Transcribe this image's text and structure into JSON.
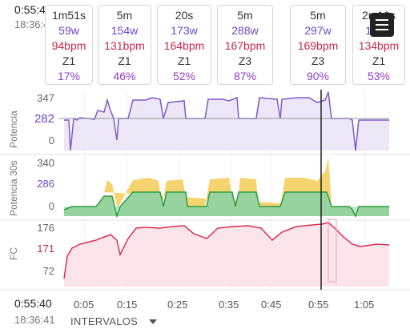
{
  "header": {
    "time": "0:55:40",
    "clock": "18:36:41"
  },
  "cards": [
    {
      "duration": "1m51s",
      "power": "59w",
      "hr": "94bpm",
      "zone": "Z1",
      "pct": "17%"
    },
    {
      "duration": "5m",
      "power": "154w",
      "hr": "131bpm",
      "zone": "Z1",
      "pct": "46%"
    },
    {
      "duration": "20s",
      "power": "173w",
      "hr": "164bpm",
      "zone": "Z1",
      "pct": "52%"
    },
    {
      "duration": "5m",
      "power": "288w",
      "hr": "167bpm",
      "zone": "Z3",
      "pct": "87%"
    },
    {
      "duration": "5m",
      "power": "297w",
      "hr": "169bpm",
      "zone": "Z3",
      "pct": "90%"
    },
    {
      "duration": "2m10s",
      "power": "176w",
      "hr": "134bpm",
      "zone": "Z1",
      "pct": "53%"
    }
  ],
  "charts": {
    "power": {
      "label": "Potencia",
      "ticks": [
        "347",
        "282",
        "0"
      ]
    },
    "power30": {
      "label": "Potencia 30s",
      "ticks": [
        "340",
        "286",
        "0"
      ]
    },
    "hr": {
      "label": "FC",
      "ticks": [
        "176",
        "171",
        "72"
      ]
    }
  },
  "footer": {
    "time": "0:55:40",
    "clock": "18:36:41",
    "tab_label": "INTERVALOS"
  },
  "xaxis": {
    "ticks": [
      "0:05",
      "0:15",
      "0:25",
      "0:35",
      "0:45",
      "0:55",
      "1:05"
    ]
  },
  "colors": {
    "power": "#7b5cc9",
    "hr": "#d9305a",
    "green": "#2e9e3e",
    "yellow": "#f2c94c"
  }
}
